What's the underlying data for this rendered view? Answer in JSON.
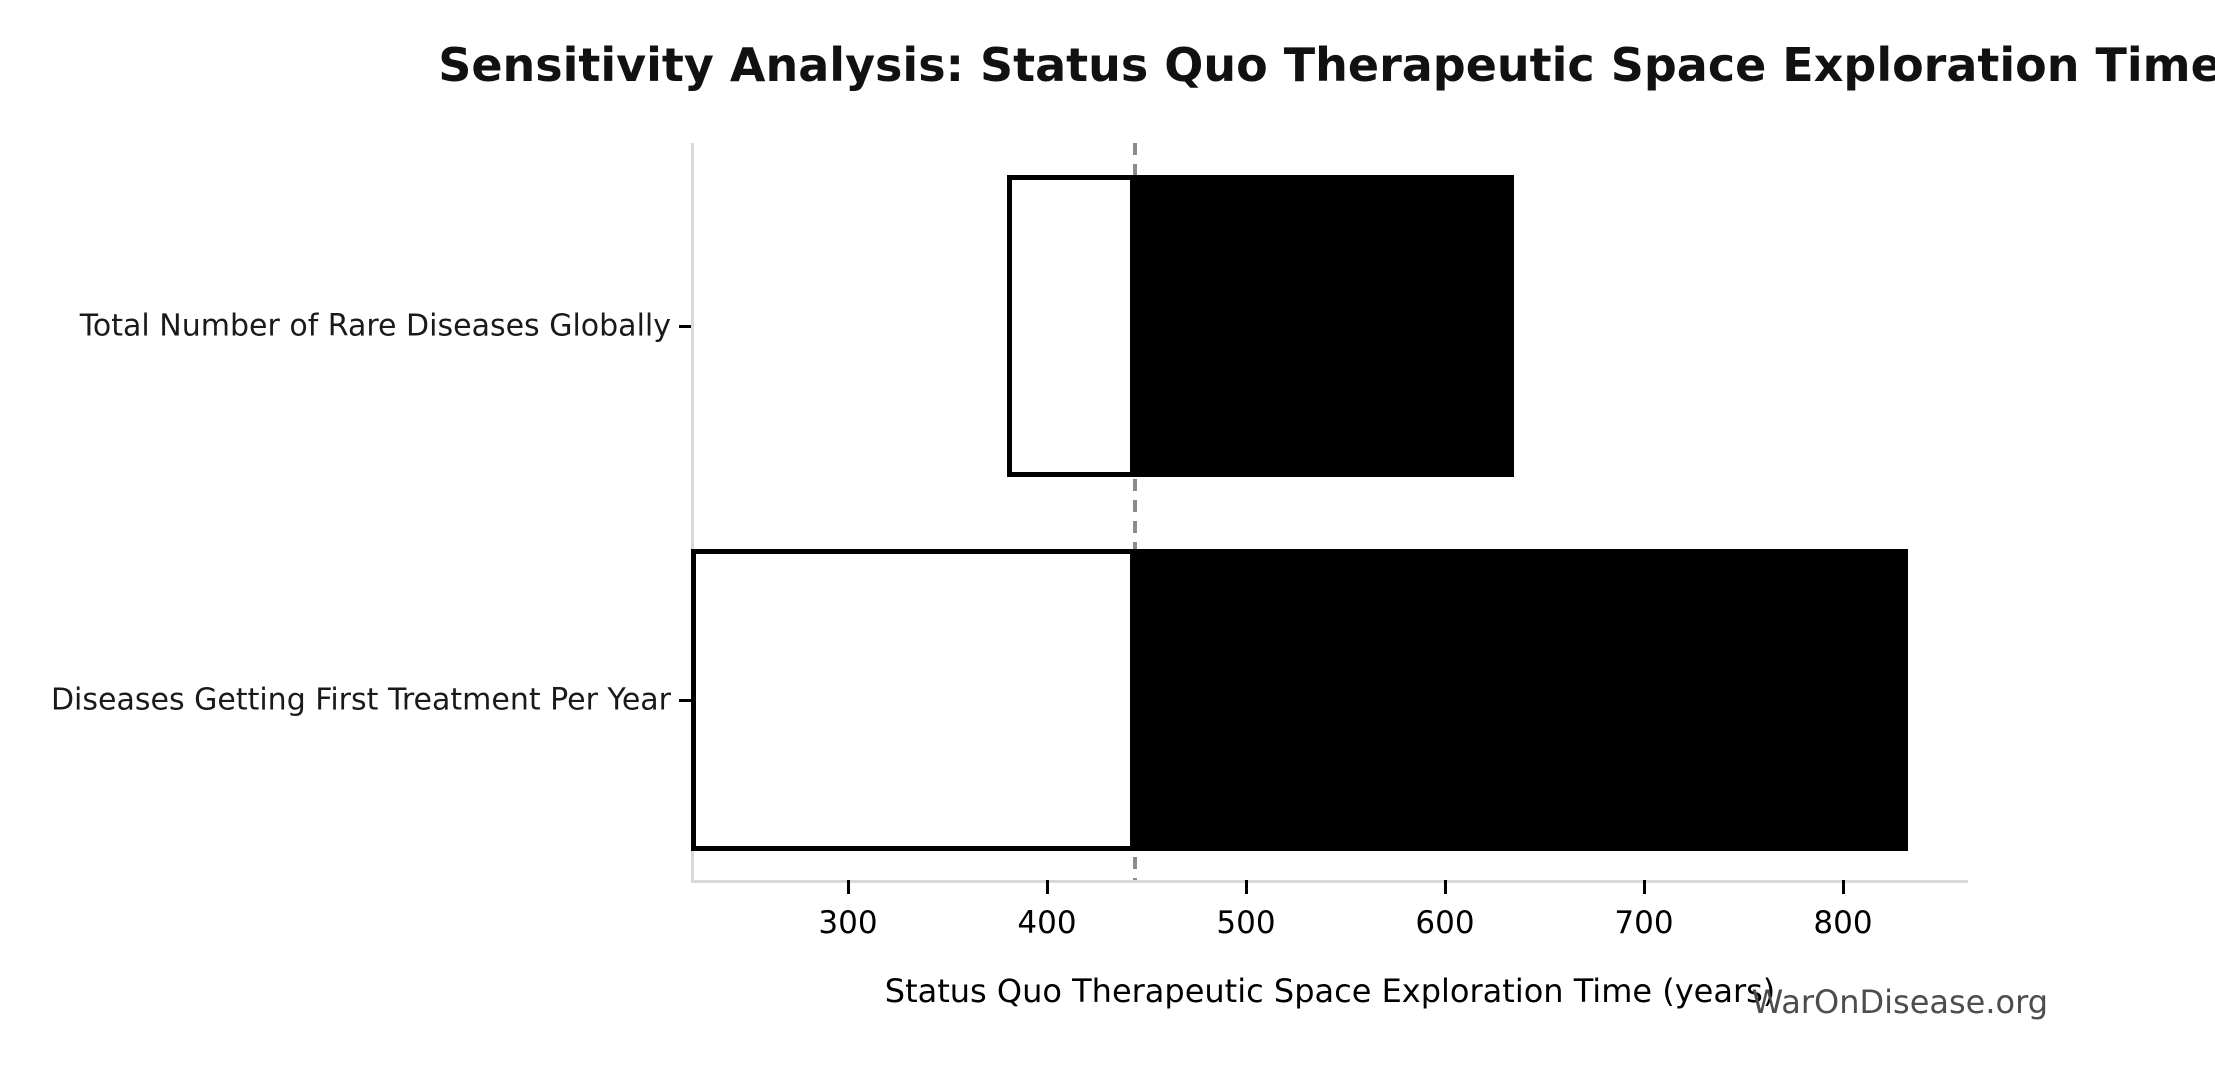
{
  "figure": {
    "title": "Sensitivity Analysis: Status Quo Therapeutic Space Exploration Time",
    "watermark": "WarOnDisease.org"
  },
  "chart_data": {
    "type": "bar",
    "orientation": "horizontal",
    "title": "Sensitivity Analysis: Status Quo Therapeutic Space Exploration Time",
    "xlabel": "Status Quo Therapeutic Space Exploration Time (years)",
    "ylabel": "",
    "categories": [
      "Total Number of Rare Diseases Globally",
      "Diseases Getting First Treatment Per Year"
    ],
    "bars": [
      {
        "category": "Total Number of Rare Diseases Globally",
        "low": 380,
        "high": 635
      },
      {
        "category": "Diseases Getting First Treatment Per Year",
        "low": 221,
        "high": 833
      }
    ],
    "base_value": 444,
    "reference_line": {
      "value": 444,
      "style": "dashed",
      "color": "#8c8c8c"
    },
    "x_ticks": [
      300,
      400,
      500,
      600,
      700,
      800
    ],
    "xlim": [
      221,
      863
    ],
    "grid": false,
    "legend": false,
    "colors": {
      "bar_above_base_fill": "#000000",
      "bar_below_base_fill": "#ffffff",
      "bar_edge": "#000000",
      "spine": "#d9d9d9",
      "tick": "#000000",
      "watermark": "#4d4d4d"
    },
    "watermark": "WarOnDisease.org"
  }
}
